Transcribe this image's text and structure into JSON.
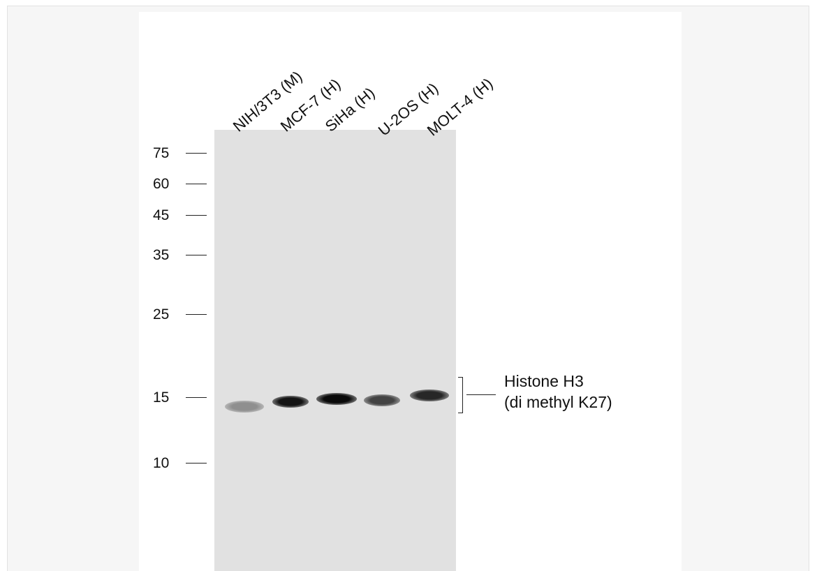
{
  "lanes": [
    {
      "label": "NIH/3T3 (M)",
      "band_intensity": 0.3
    },
    {
      "label": "MCF-7 (H)",
      "band_intensity": 0.95
    },
    {
      "label": "SiHa (H)",
      "band_intensity": 1.0
    },
    {
      "label": "U-2OS (H)",
      "band_intensity": 0.7
    },
    {
      "label": "MOLT-4 (H)",
      "band_intensity": 0.85
    }
  ],
  "markers": [
    {
      "label": "75"
    },
    {
      "label": "60"
    },
    {
      "label": "45"
    },
    {
      "label": "35"
    },
    {
      "label": "25"
    },
    {
      "label": "15"
    },
    {
      "label": "10"
    }
  ],
  "target": {
    "line1": "Histone H3",
    "line2": "(di methyl K27)"
  }
}
